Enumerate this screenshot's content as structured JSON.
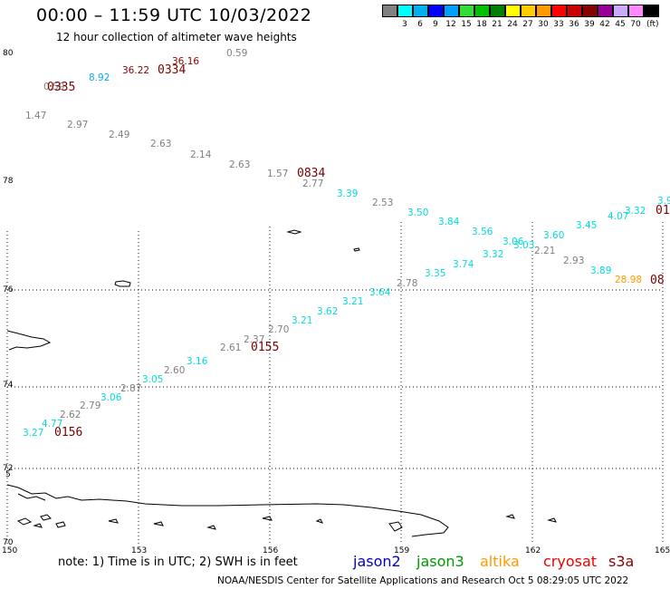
{
  "header": {
    "title": "00:00 – 11:59 UTC 10/03/2022",
    "subtitle": "12 hour collection of altimeter wave heights"
  },
  "scale": {
    "colors": [
      "#808080",
      "#00ffff",
      "#00b0f0",
      "#0000ff",
      "#00a0ff",
      "#33dd33",
      "#00c000",
      "#008000",
      "#ffff00",
      "#ffcc00",
      "#ff9900",
      "#ff0000",
      "#cc0000",
      "#880000",
      "#990099",
      "#ccaaff",
      "#ff88ff",
      "#000000"
    ],
    "labels": [
      "3",
      "6",
      "9",
      "12",
      "15",
      "18",
      "21",
      "24",
      "27",
      "30",
      "33",
      "36",
      "39",
      "42",
      "45",
      "70"
    ],
    "unit": "(ft)"
  },
  "axes": {
    "y_labels": [
      "80",
      "78",
      "76",
      "74",
      "72",
      "70"
    ],
    "y_clip_label": "5",
    "x_labels": [
      "150",
      "153",
      "156",
      "159",
      "162",
      "165"
    ]
  },
  "observations": [
    {
      "t": "0.59",
      "c": "#808080"
    },
    {
      "t": "0335",
      "c": "#7a0000",
      "k": "time"
    },
    {
      "t": "8.92",
      "c": "#00b0f0"
    },
    {
      "t": "36.22",
      "c": "#880000"
    },
    {
      "t": "36.16",
      "c": "#880000"
    },
    {
      "t": "0334",
      "c": "#7a0000",
      "k": "time"
    },
    {
      "t": "0.59",
      "c": "#808080"
    },
    {
      "t": "1.47",
      "c": "#808080"
    },
    {
      "t": "2.97",
      "c": "#808080"
    },
    {
      "t": "2.49",
      "c": "#808080"
    },
    {
      "t": "2.63",
      "c": "#808080"
    },
    {
      "t": "2.14",
      "c": "#808080"
    },
    {
      "t": "2.63",
      "c": "#808080"
    },
    {
      "t": "1.57",
      "c": "#808080"
    },
    {
      "t": "0834",
      "c": "#7a0000",
      "k": "time"
    },
    {
      "t": "2.77",
      "c": "#808080"
    },
    {
      "t": "3.39",
      "c": "#00dddd"
    },
    {
      "t": "2.53",
      "c": "#808080"
    },
    {
      "t": "3.50",
      "c": "#00dddd"
    },
    {
      "t": "3.84",
      "c": "#00dddd"
    },
    {
      "t": "3.56",
      "c": "#00dddd"
    },
    {
      "t": "3.06",
      "c": "#00dddd"
    },
    {
      "t": "3.03",
      "c": "#00dddd"
    },
    {
      "t": "3.60",
      "c": "#00dddd"
    },
    {
      "t": "3.45",
      "c": "#00dddd"
    },
    {
      "t": "4.07",
      "c": "#00dddd"
    },
    {
      "t": "3.32",
      "c": "#00dddd"
    },
    {
      "t": "3.9",
      "c": "#00dddd"
    },
    {
      "t": "01",
      "c": "#7a0000",
      "k": "time"
    },
    {
      "t": "2.21",
      "c": "#808080"
    },
    {
      "t": "2.93",
      "c": "#808080"
    },
    {
      "t": "3.89",
      "c": "#00dddd"
    },
    {
      "t": "28.98",
      "c": "#ff9900"
    },
    {
      "t": "08",
      "c": "#7a0000",
      "k": "time"
    },
    {
      "t": "3.32",
      "c": "#00dddd"
    },
    {
      "t": "3.74",
      "c": "#00dddd"
    },
    {
      "t": "3.35",
      "c": "#00dddd"
    },
    {
      "t": "2.78",
      "c": "#808080"
    },
    {
      "t": "3.64",
      "c": "#00dddd"
    },
    {
      "t": "3.21",
      "c": "#00dddd"
    },
    {
      "t": "3.62",
      "c": "#00dddd"
    },
    {
      "t": "3.21",
      "c": "#00dddd"
    },
    {
      "t": "2.70",
      "c": "#808080"
    },
    {
      "t": "2.37",
      "c": "#808080"
    },
    {
      "t": "2.61",
      "c": "#808080"
    },
    {
      "t": "0155",
      "c": "#7a0000",
      "k": "time"
    },
    {
      "t": "3.16",
      "c": "#00dddd"
    },
    {
      "t": "2.60",
      "c": "#808080"
    },
    {
      "t": "3.05",
      "c": "#00dddd"
    },
    {
      "t": "2.87",
      "c": "#808080"
    },
    {
      "t": "3.06",
      "c": "#00dddd"
    },
    {
      "t": "2.79",
      "c": "#808080"
    },
    {
      "t": "2.62",
      "c": "#808080"
    },
    {
      "t": "4.77",
      "c": "#00dddd"
    },
    {
      "t": "3.27",
      "c": "#00dddd"
    },
    {
      "t": "0156",
      "c": "#7a0000",
      "k": "time"
    }
  ],
  "footer": {
    "note": "note:  1) Time is in UTC;  2) SWH is in feet",
    "satellites": [
      {
        "name": "jason2",
        "color": "#0000cc"
      },
      {
        "name": "jason3",
        "color": "#009900"
      },
      {
        "name": "altika",
        "color": "#ff9900"
      },
      {
        "name": "cryosat",
        "color": "#ee0000"
      },
      {
        "name": "s3a",
        "color": "#880000"
      }
    ],
    "credit": "NOAA/NESDIS Center for Satellite Applications and Research    Oct  5 08:29:05 UTC 2022"
  }
}
